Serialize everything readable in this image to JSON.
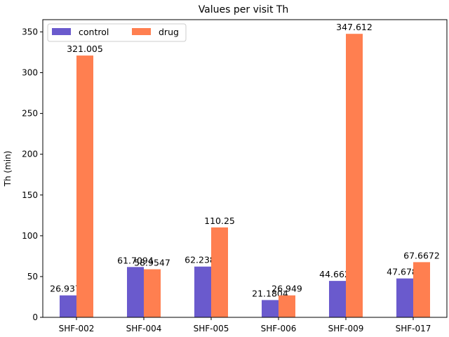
{
  "chart_data": {
    "type": "bar",
    "title": "Values per visit Th",
    "xlabel": "",
    "ylabel": "Th (min)",
    "categories": [
      "SHF-002",
      "SHF-004",
      "SHF-005",
      "SHF-006",
      "SHF-009",
      "SHF-017"
    ],
    "series": [
      {
        "name": "control",
        "color": "#6a5acd",
        "values": [
          26.9376,
          61.7094,
          62.2385,
          21.1804,
          44.6626,
          47.6788
        ],
        "labels": [
          "26.9376",
          "61.7094",
          "62.2385",
          "21.1804",
          "44.6626",
          "47.6788"
        ]
      },
      {
        "name": "drug",
        "color": "#ff7f50",
        "values": [
          321.005,
          58.9547,
          110.25,
          26.949,
          347.612,
          67.6672
        ],
        "labels": [
          "321.005",
          "58.9547",
          "110.25",
          "26.949",
          "347.612",
          "67.6672"
        ]
      }
    ],
    "ylim": [
      0,
      365
    ],
    "yticks": [
      0,
      50,
      100,
      150,
      200,
      250,
      300,
      350
    ],
    "grid": false,
    "legend": "top-left"
  }
}
